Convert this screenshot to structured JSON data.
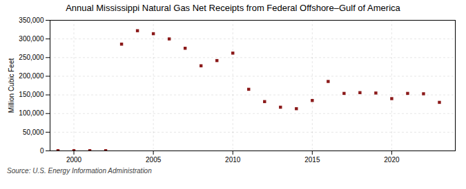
{
  "chart_data": {
    "type": "scatter",
    "title": "Annual Mississippi Natural Gas Net Receipts from Federal Offshore–Gulf of America",
    "ylabel": "Million Cubic Feet",
    "source": "Source: U.S. Energy Information Administration",
    "x": [
      1999,
      2000,
      2001,
      2002,
      2003,
      2004,
      2005,
      2006,
      2007,
      2008,
      2009,
      2010,
      2011,
      2012,
      2013,
      2014,
      2015,
      2016,
      2017,
      2018,
      2019,
      2020,
      2021,
      2022,
      2023
    ],
    "values": [
      500,
      500,
      500,
      500,
      286000,
      322000,
      314000,
      300000,
      275000,
      228000,
      242000,
      262000,
      165000,
      132000,
      117000,
      113000,
      135000,
      186000,
      154000,
      156000,
      155000,
      140000,
      154000,
      153000,
      130000
    ],
    "color": "#8b1a1a",
    "marker": "square",
    "xlim": [
      1998.5,
      2024
    ],
    "xticks": [
      2000,
      2005,
      2010,
      2015,
      2020
    ],
    "ylim": [
      0,
      350000
    ],
    "yticks": [
      0,
      {
        "value": 50000,
        "label": "50,000"
      },
      {
        "value": 100000,
        "label": "100,000"
      },
      {
        "value": 150000,
        "label": "150,000"
      },
      {
        "value": 200000,
        "label": "200,000"
      },
      {
        "value": 250000,
        "label": "250,000"
      },
      {
        "value": 300000,
        "label": "300,000"
      },
      {
        "value": 350000,
        "label": "350,000"
      }
    ],
    "grid": true
  }
}
